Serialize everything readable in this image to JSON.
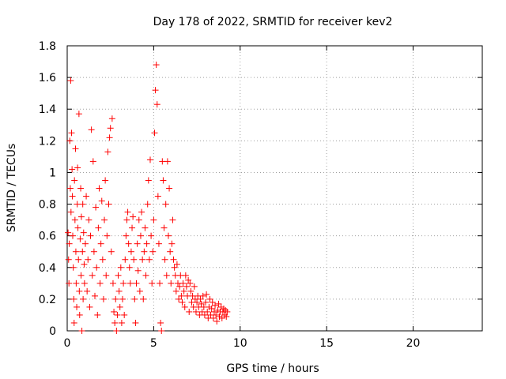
{
  "chart_data": {
    "type": "scatter",
    "title": "Day 178 of 2022, SRMTID for receiver kev2",
    "xlabel": "GPS time / hours",
    "ylabel": "SRMTID / TECUs",
    "xlim": [
      0,
      24
    ],
    "ylim": [
      0,
      1.8
    ],
    "xticks": [
      0,
      5,
      10,
      15,
      20
    ],
    "yticks": [
      0,
      0.2,
      0.4,
      0.6,
      0.8,
      1,
      1.2,
      1.4,
      1.6,
      1.8
    ],
    "xtick_labels": [
      "0",
      "5",
      "10",
      "15",
      "20"
    ],
    "ytick_labels": [
      "0",
      "0.2",
      "0.4",
      "0.6",
      "0.8",
      "1",
      "1.2",
      "1.4",
      "1.6",
      "1.8"
    ],
    "grid": true,
    "marker": "+",
    "series": [
      {
        "name": "SRMTID",
        "color": "#ff0000",
        "points": [
          [
            0.05,
            0.62
          ],
          [
            0.08,
            0.45
          ],
          [
            0.1,
            0.3
          ],
          [
            0.12,
            0.55
          ],
          [
            0.15,
            1.2
          ],
          [
            0.18,
            0.9
          ],
          [
            0.2,
            1.58
          ],
          [
            0.22,
            0.75
          ],
          [
            0.25,
            1.25
          ],
          [
            0.28,
            1.02
          ],
          [
            0.3,
            0.85
          ],
          [
            0.32,
            0.6
          ],
          [
            0.35,
            0.4
          ],
          [
            0.38,
            0.2
          ],
          [
            0.4,
            0.05
          ],
          [
            0.42,
            0.95
          ],
          [
            0.45,
            0.7
          ],
          [
            0.48,
            1.15
          ],
          [
            0.5,
            0.5
          ],
          [
            0.52,
            0.3
          ],
          [
            0.55,
            0.15
          ],
          [
            0.58,
            0.8
          ],
          [
            0.6,
            1.03
          ],
          [
            0.62,
            0.65
          ],
          [
            0.65,
            0.45
          ],
          [
            0.68,
            1.37
          ],
          [
            0.7,
            0.25
          ],
          [
            0.72,
            0.1
          ],
          [
            0.75,
            0.58
          ],
          [
            0.78,
            0.9
          ],
          [
            0.8,
            0.35
          ],
          [
            0.82,
            0.72
          ],
          [
            0.85,
            0.0
          ],
          [
            0.88,
            0.5
          ],
          [
            0.9,
            0.8
          ],
          [
            0.92,
            0.2
          ],
          [
            0.95,
            0.62
          ],
          [
            0.98,
            0.42
          ],
          [
            1.0,
            0.3
          ],
          [
            1.05,
            0.55
          ],
          [
            1.1,
            0.85
          ],
          [
            1.15,
            0.25
          ],
          [
            1.2,
            0.45
          ],
          [
            1.25,
            0.7
          ],
          [
            1.3,
            0.15
          ],
          [
            1.35,
            0.6
          ],
          [
            1.4,
            1.27
          ],
          [
            1.45,
            0.35
          ],
          [
            1.5,
            1.07
          ],
          [
            1.55,
            0.5
          ],
          [
            1.6,
            0.22
          ],
          [
            1.65,
            0.78
          ],
          [
            1.7,
            0.4
          ],
          [
            1.75,
            0.1
          ],
          [
            1.8,
            0.65
          ],
          [
            1.85,
            0.9
          ],
          [
            1.9,
            0.3
          ],
          [
            1.95,
            0.55
          ],
          [
            2.0,
            0.82
          ],
          [
            2.05,
            0.45
          ],
          [
            2.1,
            0.2
          ],
          [
            2.15,
            0.7
          ],
          [
            2.2,
            0.95
          ],
          [
            2.25,
            0.35
          ],
          [
            2.3,
            0.6
          ],
          [
            2.35,
            1.13
          ],
          [
            2.4,
            0.8
          ],
          [
            2.45,
            1.22
          ],
          [
            2.5,
            1.28
          ],
          [
            2.55,
            0.5
          ],
          [
            2.6,
            1.34
          ],
          [
            2.65,
            0.3
          ],
          [
            2.7,
            0.12
          ],
          [
            2.75,
            0.05
          ],
          [
            2.8,
            0.2
          ],
          [
            2.85,
            0.0
          ],
          [
            2.9,
            0.1
          ],
          [
            2.95,
            0.35
          ],
          [
            3.0,
            0.25
          ],
          [
            3.05,
            0.15
          ],
          [
            3.1,
            0.4
          ],
          [
            3.15,
            0.05
          ],
          [
            3.2,
            0.2
          ],
          [
            3.25,
            0.3
          ],
          [
            3.3,
            0.1
          ],
          [
            3.35,
            0.45
          ],
          [
            3.4,
            0.6
          ],
          [
            3.45,
            0.7
          ],
          [
            3.5,
            0.75
          ],
          [
            3.55,
            0.55
          ],
          [
            3.6,
            0.4
          ],
          [
            3.65,
            0.3
          ],
          [
            3.7,
            0.5
          ],
          [
            3.75,
            0.65
          ],
          [
            3.8,
            0.72
          ],
          [
            3.85,
            0.45
          ],
          [
            3.9,
            0.2
          ],
          [
            3.95,
            0.05
          ],
          [
            4.0,
            0.3
          ],
          [
            4.05,
            0.55
          ],
          [
            4.1,
            0.38
          ],
          [
            4.15,
            0.7
          ],
          [
            4.2,
            0.25
          ],
          [
            4.25,
            0.6
          ],
          [
            4.3,
            0.75
          ],
          [
            4.35,
            0.45
          ],
          [
            4.4,
            0.2
          ],
          [
            4.45,
            0.5
          ],
          [
            4.5,
            0.65
          ],
          [
            4.55,
            0.35
          ],
          [
            4.6,
            0.55
          ],
          [
            4.65,
            0.8
          ],
          [
            4.7,
            0.95
          ],
          [
            4.75,
            0.45
          ],
          [
            4.8,
            1.08
          ],
          [
            4.85,
            0.6
          ],
          [
            4.9,
            0.3
          ],
          [
            4.95,
            0.5
          ],
          [
            5.0,
            0.7
          ],
          [
            5.05,
            1.25
          ],
          [
            5.1,
            1.52
          ],
          [
            5.15,
            1.68
          ],
          [
            5.2,
            1.43
          ],
          [
            5.25,
            0.85
          ],
          [
            5.3,
            0.55
          ],
          [
            5.35,
            0.3
          ],
          [
            5.4,
            0.05
          ],
          [
            5.45,
            0.0
          ],
          [
            5.5,
            1.07
          ],
          [
            5.55,
            0.95
          ],
          [
            5.6,
            0.65
          ],
          [
            5.65,
            0.45
          ],
          [
            5.7,
            0.8
          ],
          [
            5.75,
            0.35
          ],
          [
            5.8,
            1.07
          ],
          [
            5.85,
            0.6
          ],
          [
            5.9,
            0.9
          ],
          [
            5.95,
            0.5
          ],
          [
            6.0,
            0.3
          ],
          [
            6.05,
            0.55
          ],
          [
            6.1,
            0.7
          ],
          [
            6.15,
            0.45
          ],
          [
            6.2,
            0.4
          ],
          [
            6.25,
            0.35
          ],
          [
            6.3,
            0.25
          ],
          [
            6.35,
            0.42
          ],
          [
            6.4,
            0.3
          ],
          [
            6.45,
            0.2
          ],
          [
            6.5,
            0.28
          ],
          [
            6.55,
            0.35
          ],
          [
            6.6,
            0.22
          ],
          [
            6.65,
            0.18
          ],
          [
            6.7,
            0.3
          ],
          [
            6.75,
            0.25
          ],
          [
            6.8,
            0.15
          ],
          [
            6.85,
            0.35
          ],
          [
            6.9,
            0.28
          ],
          [
            6.95,
            0.22
          ],
          [
            7.0,
            0.32
          ],
          [
            7.05,
            0.12
          ],
          [
            7.1,
            0.3
          ],
          [
            7.15,
            0.25
          ],
          [
            7.2,
            0.18
          ],
          [
            7.25,
            0.22
          ],
          [
            7.3,
            0.15
          ],
          [
            7.35,
            0.28
          ],
          [
            7.4,
            0.2
          ],
          [
            7.45,
            0.12
          ],
          [
            7.5,
            0.18
          ],
          [
            7.55,
            0.22
          ],
          [
            7.6,
            0.15
          ],
          [
            7.65,
            0.1
          ],
          [
            7.7,
            0.2
          ],
          [
            7.75,
            0.17
          ],
          [
            7.8,
            0.12
          ],
          [
            7.85,
            0.22
          ],
          [
            7.9,
            0.15
          ],
          [
            7.95,
            0.1
          ],
          [
            8.0,
            0.18
          ],
          [
            8.05,
            0.23
          ],
          [
            8.1,
            0.12
          ],
          [
            8.15,
            0.08
          ],
          [
            8.2,
            0.15
          ],
          [
            8.25,
            0.2
          ],
          [
            8.3,
            0.1
          ],
          [
            8.35,
            0.14
          ],
          [
            8.4,
            0.18
          ],
          [
            8.45,
            0.08
          ],
          [
            8.5,
            0.12
          ],
          [
            8.55,
            0.16
          ],
          [
            8.6,
            0.1
          ],
          [
            8.65,
            0.06
          ],
          [
            8.7,
            0.13
          ],
          [
            8.75,
            0.17
          ],
          [
            8.8,
            0.09
          ],
          [
            8.85,
            0.12
          ],
          [
            8.9,
            0.15
          ],
          [
            8.95,
            0.08
          ],
          [
            9.0,
            0.12
          ],
          [
            9.05,
            0.14
          ],
          [
            9.1,
            0.1
          ],
          [
            9.15,
            0.13
          ],
          [
            9.2,
            0.09
          ],
          [
            9.25,
            0.12
          ]
        ]
      }
    ]
  }
}
